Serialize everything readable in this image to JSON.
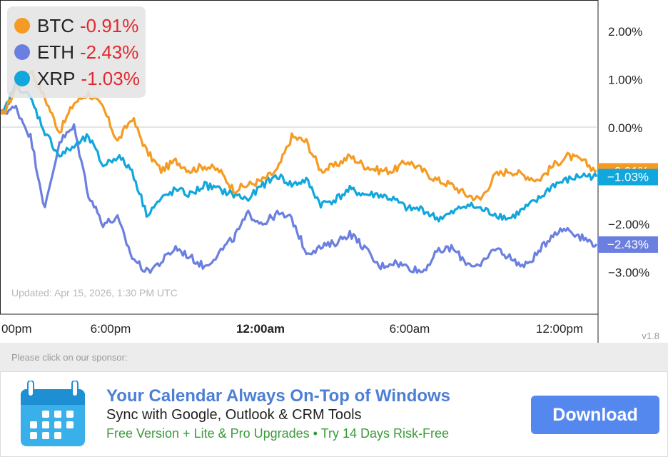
{
  "chart_data": {
    "type": "line",
    "title": "",
    "xlabel": "",
    "ylabel": "",
    "x_tick_labels": [
      "00pm",
      "6:00pm",
      "12:00am",
      "6:00am",
      "12:00pm"
    ],
    "x_tick_bold": [
      false,
      false,
      true,
      false,
      false
    ],
    "y_ticks": [
      2.0,
      1.0,
      0.0,
      -2.0,
      -3.0
    ],
    "y_tick_labels": [
      "2.00%",
      "1.00%",
      "0.00%",
      "−2.00%",
      "−3.00%"
    ],
    "ylim": [
      -3.3,
      2.5
    ],
    "series": [
      {
        "name": "BTC",
        "color": "#f59b23",
        "change": "-0.91%",
        "end_label": "−0.91%",
        "values": [
          0.2,
          0.8,
          1.2,
          0.6,
          -0.1,
          0.5,
          0.7,
          0.4,
          -0.3,
          0.2,
          -0.5,
          -0.9,
          -0.7,
          -0.9,
          -0.8,
          -0.9,
          -1.3,
          -1.2,
          -1.1,
          -0.9,
          -0.2,
          -0.3,
          -0.9,
          -0.8,
          -0.6,
          -0.8,
          -0.9,
          -0.9,
          -0.7,
          -0.9,
          -1.1,
          -1.2,
          -1.4,
          -1.5,
          -1.0,
          -0.9,
          -1.0,
          -1.1,
          -0.8,
          -0.6,
          -0.7,
          -0.91
        ]
      },
      {
        "name": "ETH",
        "color": "#6b7fe0",
        "change": "-2.43%",
        "end_label": "−2.43%",
        "values": [
          0.3,
          0.4,
          -0.2,
          -1.7,
          -0.3,
          0.0,
          -1.4,
          -2.0,
          -1.9,
          -2.7,
          -3.0,
          -2.8,
          -2.5,
          -2.7,
          -2.9,
          -2.6,
          -2.3,
          -1.8,
          -2.0,
          -1.8,
          -1.9,
          -2.6,
          -2.5,
          -2.4,
          -2.2,
          -2.5,
          -2.9,
          -2.8,
          -2.9,
          -3.0,
          -2.6,
          -2.5,
          -2.8,
          -2.9,
          -2.5,
          -2.7,
          -2.9,
          -2.6,
          -2.2,
          -2.1,
          -2.3,
          -2.43
        ]
      },
      {
        "name": "XRP",
        "color": "#12a7dc",
        "change": "-1.03%",
        "end_label": "−1.03%",
        "values": [
          0.2,
          0.9,
          0.6,
          -0.1,
          -0.6,
          -0.4,
          -0.2,
          -0.8,
          -0.6,
          -0.9,
          -1.8,
          -1.5,
          -1.3,
          -1.4,
          -1.2,
          -1.3,
          -1.4,
          -1.5,
          -1.2,
          -1.0,
          -1.2,
          -1.1,
          -1.6,
          -1.5,
          -1.3,
          -1.4,
          -1.4,
          -1.5,
          -1.7,
          -1.7,
          -1.9,
          -1.8,
          -1.6,
          -1.7,
          -1.8,
          -1.9,
          -1.7,
          -1.5,
          -1.2,
          -1.1,
          -1.0,
          -1.03
        ]
      }
    ]
  },
  "updated_text": "Updated: Apr 15, 2026, 1:30 PM UTC",
  "version": "v1.8",
  "sponsor": {
    "prompt": "Please click on our sponsor:",
    "headline": "Your Calendar Always On-Top of Windows",
    "subline": "Sync with Google, Outlook & CRM Tools",
    "greenline": "Free Version + Lite & Pro Upgrades • Try 14 Days Risk-Free",
    "button_label": "Download",
    "icon": "calendar-icon"
  }
}
